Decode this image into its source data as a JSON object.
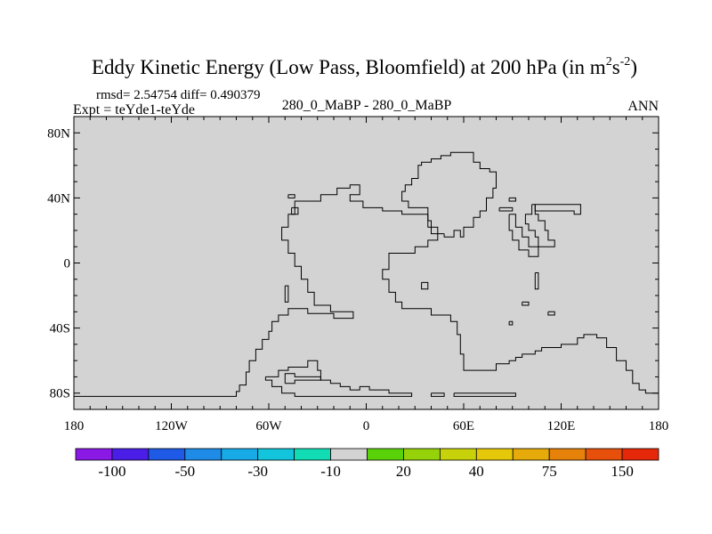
{
  "chart_data": {
    "type": "map",
    "title": "Eddy Kinetic Energy (Low Pass, Bloomfield) at 200 hPa (in m",
    "units": {
      "a": "2",
      "b": "s",
      "c": "-2",
      "close": ")"
    },
    "subtitle": {
      "stats": "rmsd= 2.54754 diff= 0.490379",
      "expt": "Expt = teYde1-teYde",
      "case": "280_0_MaBP - 280_0_MaBP",
      "season": "ANN"
    },
    "x_ticks": [
      {
        "value": -180,
        "label": "180"
      },
      {
        "value": -120,
        "label": "120W"
      },
      {
        "value": -60,
        "label": "60W"
      },
      {
        "value": 0,
        "label": "0"
      },
      {
        "value": 60,
        "label": "60E"
      },
      {
        "value": 120,
        "label": "120E"
      },
      {
        "value": 180,
        "label": "180"
      }
    ],
    "y_ticks": [
      {
        "value": 80,
        "label": "80N"
      },
      {
        "value": 40,
        "label": "40N"
      },
      {
        "value": 0,
        "label": "0"
      },
      {
        "value": -40,
        "label": "40S"
      },
      {
        "value": -80,
        "label": "80S"
      }
    ],
    "xlim": [
      -180,
      180
    ],
    "ylim": [
      -90,
      90
    ],
    "field_color": "#d3d3d3",
    "colorbar": {
      "colors": [
        "#8a19e6",
        "#4a1ee6",
        "#1e5ae6",
        "#1e8ce6",
        "#18aae6",
        "#12c4dc",
        "#12dcb4",
        "#d3d3d3",
        "#5ad20a",
        "#96d20a",
        "#c8d20a",
        "#e6c80a",
        "#e6aa0a",
        "#e6820a",
        "#e6500a",
        "#e6280a"
      ],
      "labels": [
        {
          "after": 1,
          "text": "-100"
        },
        {
          "after": 3,
          "text": "-50"
        },
        {
          "after": 5,
          "text": "-30"
        },
        {
          "after": 7,
          "text": "-10"
        },
        {
          "after": 9,
          "text": "20"
        },
        {
          "after": 11,
          "text": "40"
        },
        {
          "after": 13,
          "text": "75"
        },
        {
          "after": 15,
          "text": "150"
        }
      ]
    },
    "coastlines": [
      [
        [
          -180,
          -82
        ],
        [
          -80,
          -82
        ],
        [
          -80,
          -79
        ],
        [
          -78,
          -79
        ],
        [
          -78,
          -75
        ],
        [
          -74,
          -75
        ],
        [
          -74,
          -67
        ],
        [
          -72,
          -67
        ],
        [
          -72,
          -60
        ],
        [
          -68,
          -60
        ],
        [
          -68,
          -53
        ],
        [
          -64,
          -53
        ],
        [
          -64,
          -47
        ],
        [
          -60,
          -47
        ],
        [
          -60,
          -42
        ],
        [
          -58,
          -42
        ],
        [
          -58,
          -36
        ],
        [
          -54,
          -36
        ],
        [
          -54,
          -32
        ],
        [
          -48,
          -32
        ],
        [
          -48,
          -28
        ],
        [
          -36,
          -28
        ],
        [
          -36,
          -31
        ],
        [
          -20,
          -31
        ],
        [
          -20,
          -34
        ],
        [
          -8,
          -34
        ],
        [
          -8,
          -30
        ],
        [
          -22,
          -30
        ],
        [
          -22,
          -26
        ],
        [
          -32,
          -26
        ],
        [
          -32,
          -18
        ],
        [
          -36,
          -18
        ],
        [
          -36,
          -10
        ],
        [
          -40,
          -10
        ],
        [
          -40,
          -2
        ],
        [
          -44,
          -2
        ],
        [
          -44,
          6
        ],
        [
          -48,
          6
        ],
        [
          -48,
          14
        ],
        [
          -52,
          14
        ],
        [
          -52,
          22
        ],
        [
          -48,
          22
        ],
        [
          -48,
          30
        ],
        [
          -44,
          30
        ],
        [
          -44,
          38
        ],
        [
          -28,
          38
        ],
        [
          -28,
          42
        ],
        [
          -18,
          42
        ],
        [
          -18,
          46
        ],
        [
          -10,
          46
        ],
        [
          -10,
          48
        ],
        [
          -4,
          48
        ],
        [
          -4,
          42
        ],
        [
          -10,
          42
        ],
        [
          -10,
          38
        ],
        [
          -2,
          38
        ],
        [
          -2,
          34
        ],
        [
          10,
          34
        ],
        [
          10,
          32
        ],
        [
          22,
          32
        ],
        [
          22,
          30
        ],
        [
          38,
          30
        ],
        [
          38,
          26
        ],
        [
          40,
          26
        ],
        [
          40,
          18
        ],
        [
          44,
          18
        ],
        [
          44,
          14
        ],
        [
          38,
          14
        ],
        [
          38,
          10
        ],
        [
          30,
          10
        ],
        [
          30,
          6
        ],
        [
          14,
          6
        ],
        [
          14,
          -4
        ],
        [
          10,
          -4
        ],
        [
          10,
          -10
        ],
        [
          14,
          -10
        ],
        [
          14,
          -18
        ],
        [
          18,
          -18
        ],
        [
          18,
          -24
        ],
        [
          22,
          -24
        ],
        [
          22,
          -28
        ],
        [
          40,
          -28
        ],
        [
          40,
          -32
        ],
        [
          52,
          -32
        ],
        [
          52,
          -36
        ],
        [
          56,
          -36
        ],
        [
          56,
          -44
        ],
        [
          58,
          -44
        ],
        [
          58,
          -56
        ],
        [
          60,
          -56
        ],
        [
          60,
          -66
        ],
        [
          80,
          -66
        ],
        [
          80,
          -62
        ],
        [
          88,
          -62
        ],
        [
          88,
          -60
        ],
        [
          92,
          -60
        ],
        [
          92,
          -58
        ],
        [
          96,
          -58
        ],
        [
          96,
          -56
        ],
        [
          104,
          -56
        ],
        [
          104,
          -54
        ],
        [
          108,
          -54
        ],
        [
          108,
          -52
        ],
        [
          120,
          -52
        ],
        [
          120,
          -50
        ],
        [
          130,
          -50
        ],
        [
          130,
          -46
        ],
        [
          134,
          -46
        ],
        [
          134,
          -44
        ],
        [
          142,
          -44
        ],
        [
          142,
          -46
        ],
        [
          148,
          -46
        ],
        [
          148,
          -52
        ],
        [
          154,
          -52
        ],
        [
          154,
          -60
        ],
        [
          160,
          -60
        ],
        [
          160,
          -66
        ],
        [
          164,
          -66
        ],
        [
          164,
          -74
        ],
        [
          168,
          -74
        ],
        [
          168,
          -78
        ],
        [
          172,
          -78
        ],
        [
          172,
          -80
        ],
        [
          180,
          -80
        ]
      ],
      [
        [
          48,
          18
        ],
        [
          44,
          18
        ],
        [
          44,
          22
        ],
        [
          38,
          22
        ],
        [
          38,
          34
        ],
        [
          26,
          34
        ],
        [
          26,
          38
        ],
        [
          22,
          38
        ],
        [
          22,
          44
        ],
        [
          24,
          44
        ],
        [
          24,
          48
        ],
        [
          28,
          48
        ],
        [
          28,
          52
        ],
        [
          32,
          52
        ],
        [
          32,
          60
        ],
        [
          34,
          60
        ],
        [
          34,
          62
        ],
        [
          40,
          62
        ],
        [
          40,
          64
        ],
        [
          46,
          64
        ],
        [
          46,
          66
        ],
        [
          52,
          66
        ],
        [
          52,
          68
        ],
        [
          66,
          68
        ],
        [
          66,
          62
        ],
        [
          70,
          62
        ],
        [
          70,
          58
        ],
        [
          76,
          58
        ],
        [
          76,
          56
        ],
        [
          80,
          56
        ],
        [
          80,
          46
        ],
        [
          78,
          46
        ],
        [
          78,
          40
        ],
        [
          74,
          40
        ],
        [
          74,
          32
        ],
        [
          70,
          32
        ],
        [
          70,
          28
        ],
        [
          66,
          28
        ],
        [
          66,
          22
        ],
        [
          60,
          22
        ],
        [
          60,
          16
        ],
        [
          58,
          16
        ],
        [
          58,
          20
        ],
        [
          54,
          20
        ],
        [
          54,
          16
        ],
        [
          48,
          16
        ],
        [
          48,
          18
        ]
      ],
      [
        [
          82,
          34
        ],
        [
          90,
          34
        ],
        [
          90,
          32
        ],
        [
          82,
          32
        ],
        [
          82,
          34
        ]
      ],
      [
        [
          88,
          30
        ],
        [
          88,
          20
        ],
        [
          90,
          20
        ],
        [
          90,
          14
        ],
        [
          94,
          14
        ],
        [
          94,
          8
        ],
        [
          100,
          8
        ],
        [
          100,
          4
        ],
        [
          106,
          4
        ],
        [
          106,
          10
        ],
        [
          100,
          10
        ],
        [
          100,
          16
        ],
        [
          96,
          16
        ],
        [
          96,
          22
        ],
        [
          92,
          22
        ],
        [
          92,
          30
        ],
        [
          88,
          30
        ]
      ],
      [
        [
          102,
          36
        ],
        [
          104,
          36
        ],
        [
          104,
          30
        ],
        [
          106,
          30
        ],
        [
          106,
          26
        ],
        [
          110,
          26
        ],
        [
          110,
          20
        ],
        [
          112,
          20
        ],
        [
          112,
          14
        ],
        [
          116,
          14
        ],
        [
          116,
          10
        ],
        [
          106,
          10
        ],
        [
          106,
          16
        ],
        [
          104,
          16
        ],
        [
          104,
          20
        ],
        [
          100,
          20
        ],
        [
          100,
          24
        ],
        [
          98,
          24
        ],
        [
          98,
          30
        ],
        [
          102,
          30
        ],
        [
          102,
          36
        ]
      ],
      [
        [
          104,
          36
        ],
        [
          132,
          36
        ],
        [
          132,
          30
        ],
        [
          128,
          30
        ],
        [
          128,
          32
        ],
        [
          104,
          32
        ],
        [
          104,
          36
        ]
      ],
      [
        [
          -48,
          42
        ],
        [
          -44,
          42
        ],
        [
          -44,
          40
        ],
        [
          -48,
          40
        ],
        [
          -48,
          42
        ]
      ],
      [
        [
          -46,
          34
        ],
        [
          -42,
          34
        ],
        [
          -42,
          30
        ],
        [
          -46,
          30
        ],
        [
          -46,
          34
        ]
      ],
      [
        [
          -50,
          -14
        ],
        [
          -48,
          -14
        ],
        [
          -48,
          -24
        ],
        [
          -50,
          -24
        ],
        [
          -50,
          -14
        ]
      ],
      [
        [
          34,
          -12
        ],
        [
          38,
          -12
        ],
        [
          38,
          -16
        ],
        [
          34,
          -16
        ],
        [
          34,
          -12
        ]
      ],
      [
        [
          88,
          -36
        ],
        [
          90,
          -36
        ],
        [
          90,
          -38
        ],
        [
          88,
          -38
        ],
        [
          88,
          -36
        ]
      ],
      [
        [
          104,
          -6
        ],
        [
          106,
          -6
        ],
        [
          106,
          -16
        ],
        [
          104,
          -16
        ],
        [
          104,
          -6
        ]
      ],
      [
        [
          96,
          -24
        ],
        [
          100,
          -24
        ],
        [
          100,
          -26
        ],
        [
          96,
          -26
        ],
        [
          96,
          -24
        ]
      ],
      [
        [
          112,
          -30
        ],
        [
          116,
          -30
        ],
        [
          116,
          -32
        ],
        [
          112,
          -32
        ],
        [
          112,
          -30
        ]
      ],
      [
        [
          88,
          40
        ],
        [
          92,
          40
        ],
        [
          92,
          38
        ],
        [
          88,
          38
        ],
        [
          88,
          40
        ]
      ],
      [
        [
          -62,
          -70
        ],
        [
          -54,
          -70
        ],
        [
          -54,
          -66
        ],
        [
          -48,
          -66
        ],
        [
          -48,
          -64
        ],
        [
          -36,
          -64
        ],
        [
          -36,
          -60
        ],
        [
          -30,
          -60
        ],
        [
          -30,
          -66
        ],
        [
          -28,
          -66
        ],
        [
          -28,
          -72
        ],
        [
          -22,
          -72
        ],
        [
          -22,
          -74
        ],
        [
          -16,
          -74
        ],
        [
          -16,
          -76
        ],
        [
          -10,
          -76
        ],
        [
          -10,
          -78
        ],
        [
          -4,
          -78
        ],
        [
          -4,
          -76
        ],
        [
          2,
          -76
        ],
        [
          2,
          -78
        ],
        [
          14,
          -78
        ],
        [
          14,
          -80
        ],
        [
          28,
          -80
        ],
        [
          28,
          -82
        ],
        [
          -44,
          -82
        ],
        [
          -44,
          -80
        ],
        [
          -52,
          -80
        ],
        [
          -52,
          -76
        ],
        [
          -58,
          -76
        ],
        [
          -58,
          -72
        ],
        [
          -62,
          -72
        ],
        [
          -62,
          -70
        ]
      ],
      [
        [
          -50,
          -74
        ],
        [
          -44,
          -74
        ],
        [
          -44,
          -72
        ],
        [
          -28,
          -72
        ],
        [
          -28,
          -70
        ],
        [
          -44,
          -70
        ],
        [
          -44,
          -68
        ],
        [
          -50,
          -68
        ],
        [
          -50,
          -74
        ]
      ],
      [
        [
          40,
          -80
        ],
        [
          48,
          -80
        ],
        [
          48,
          -82
        ],
        [
          40,
          -82
        ],
        [
          40,
          -80
        ]
      ],
      [
        [
          54,
          -80
        ],
        [
          92,
          -80
        ],
        [
          92,
          -82
        ],
        [
          54,
          -82
        ],
        [
          54,
          -80
        ]
      ]
    ]
  }
}
